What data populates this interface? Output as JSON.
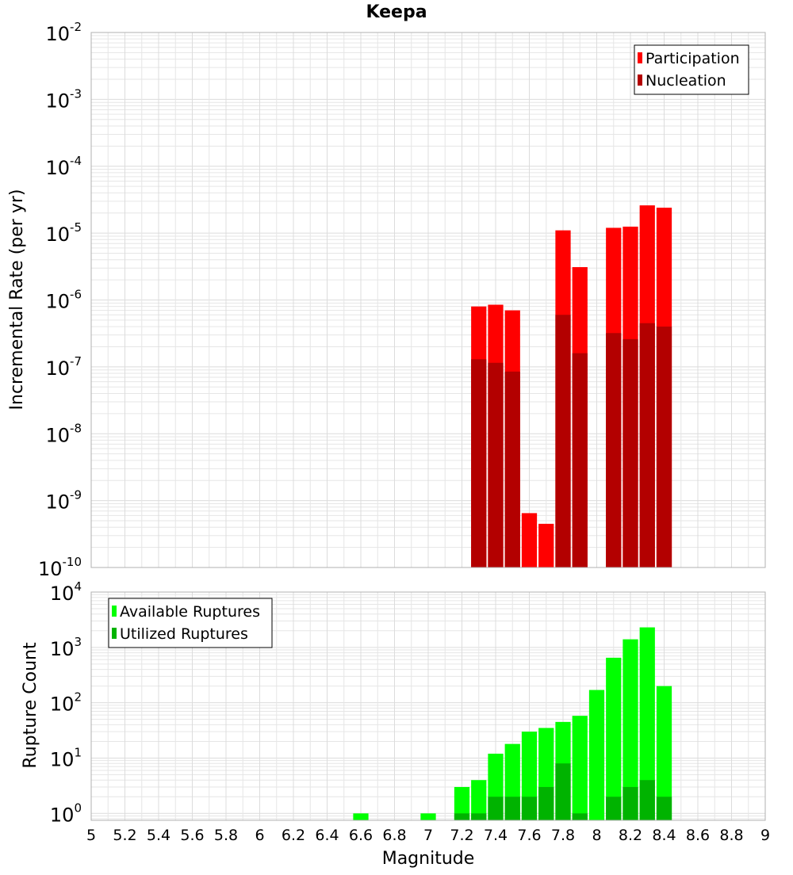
{
  "title": "Keepa",
  "xlabel": "Magnitude",
  "x_ticks": [
    5,
    5.2,
    5.4,
    5.6,
    5.8,
    6,
    6.2,
    6.4,
    6.6,
    6.8,
    7,
    7.2,
    7.4,
    7.6,
    7.8,
    8,
    8.2,
    8.4,
    8.6,
    8.8,
    9
  ],
  "x_tick_labels": [
    "5",
    "5.2",
    "5.4",
    "5.6",
    "5.8",
    "6",
    "6.2",
    "6.4",
    "6.6",
    "6.8",
    "7",
    "7.2",
    "7.4",
    "7.6",
    "7.8",
    "8",
    "8.2",
    "8.4",
    "8.6",
    "8.8",
    "9"
  ],
  "colors": {
    "participation": "#ff0000",
    "nucleation": "#b30000",
    "available": "#00ff00",
    "utilized": "#00b300",
    "grid": "#e6e6e6",
    "frame": "#b0b0b0"
  },
  "chart_data": [
    {
      "type": "bar",
      "title": "Keepa",
      "ylabel": "Incremental Rate (per yr)",
      "xlabel": "",
      "y_scale": "log",
      "xlim": [
        5,
        9
      ],
      "ylim": [
        1e-10,
        0.01
      ],
      "y_tick_exponents": [
        -10,
        -9,
        -8,
        -7,
        -6,
        -5,
        -4,
        -3,
        -2
      ],
      "legend": {
        "placement": "top-right",
        "entries": [
          "Participation",
          "Nucleation"
        ]
      },
      "x": [
        7.3,
        7.4,
        7.5,
        7.6,
        7.7,
        7.8,
        7.9,
        8.0,
        8.1,
        8.2,
        8.3,
        8.4
      ],
      "series": [
        {
          "name": "Participation",
          "values": [
            8e-07,
            8.5e-07,
            7e-07,
            6.5e-10,
            4.5e-10,
            1.1e-05,
            3.1e-06,
            0,
            1.2e-05,
            1.25e-05,
            2.6e-05,
            2.4e-05
          ]
        },
        {
          "name": "Nucleation",
          "values": [
            1.3e-07,
            1.15e-07,
            8.5e-08,
            0,
            0,
            6e-07,
            1.6e-07,
            0,
            3.2e-07,
            2.6e-07,
            4.5e-07,
            4e-07
          ]
        }
      ]
    },
    {
      "type": "bar",
      "ylabel": "Rupture Count",
      "xlabel": "Magnitude",
      "y_scale": "log",
      "xlim": [
        5,
        9
      ],
      "ylim": [
        0.75,
        10000
      ],
      "y_tick_exponents": [
        0,
        1,
        2,
        3,
        4
      ],
      "legend": {
        "placement": "top-left",
        "entries": [
          "Available Ruptures",
          "Utilized Ruptures"
        ]
      },
      "x": [
        6.6,
        7.0,
        7.2,
        7.3,
        7.4,
        7.5,
        7.6,
        7.7,
        7.8,
        7.9,
        8.0,
        8.1,
        8.2,
        8.3,
        8.4
      ],
      "series": [
        {
          "name": "Available Ruptures",
          "values": [
            1,
            1,
            3,
            4,
            12,
            18,
            30,
            35,
            45,
            58,
            170,
            650,
            1400,
            2300,
            200
          ]
        },
        {
          "name": "Utilized Ruptures",
          "values": [
            0,
            0,
            1,
            1,
            2,
            2,
            2,
            3,
            8,
            1,
            0,
            2,
            3,
            4,
            2
          ]
        }
      ]
    }
  ]
}
